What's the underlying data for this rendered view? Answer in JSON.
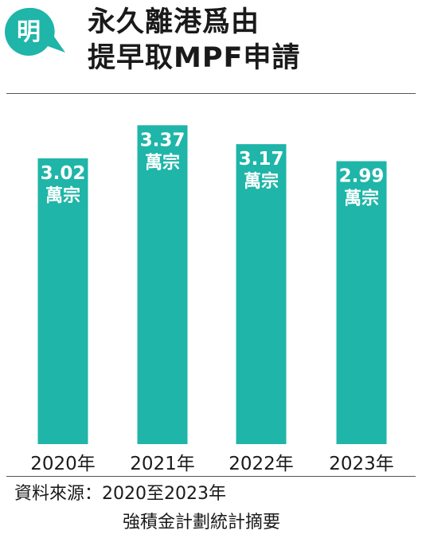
{
  "logo": {
    "glyph": "明",
    "colors": {
      "bubble": "#1fb5a8",
      "glyph": "#ffffff"
    }
  },
  "title": {
    "line1": "永久離港爲由",
    "line2": "提早取MPF申請"
  },
  "source": {
    "line1": "資料來源：2020至2023年",
    "line2": "強積金計劃統計摘要"
  },
  "colors": {
    "bar": "#1fb5a8",
    "bar_label": "#ffffff",
    "text": "#1a1a1a"
  },
  "chart_data": {
    "type": "bar",
    "categories": [
      "2020年",
      "2021年",
      "2022年",
      "2023年"
    ],
    "values": [
      3.02,
      3.37,
      3.17,
      2.99
    ],
    "unit_label": "萬宗",
    "value_labels": [
      "3.02",
      "3.37",
      "3.17",
      "2.99"
    ],
    "title": "永久離港爲由提早取MPF申請",
    "xlabel": "",
    "ylabel": "",
    "ylim": [
      0,
      3.6
    ],
    "grid": false,
    "legend": "none"
  }
}
